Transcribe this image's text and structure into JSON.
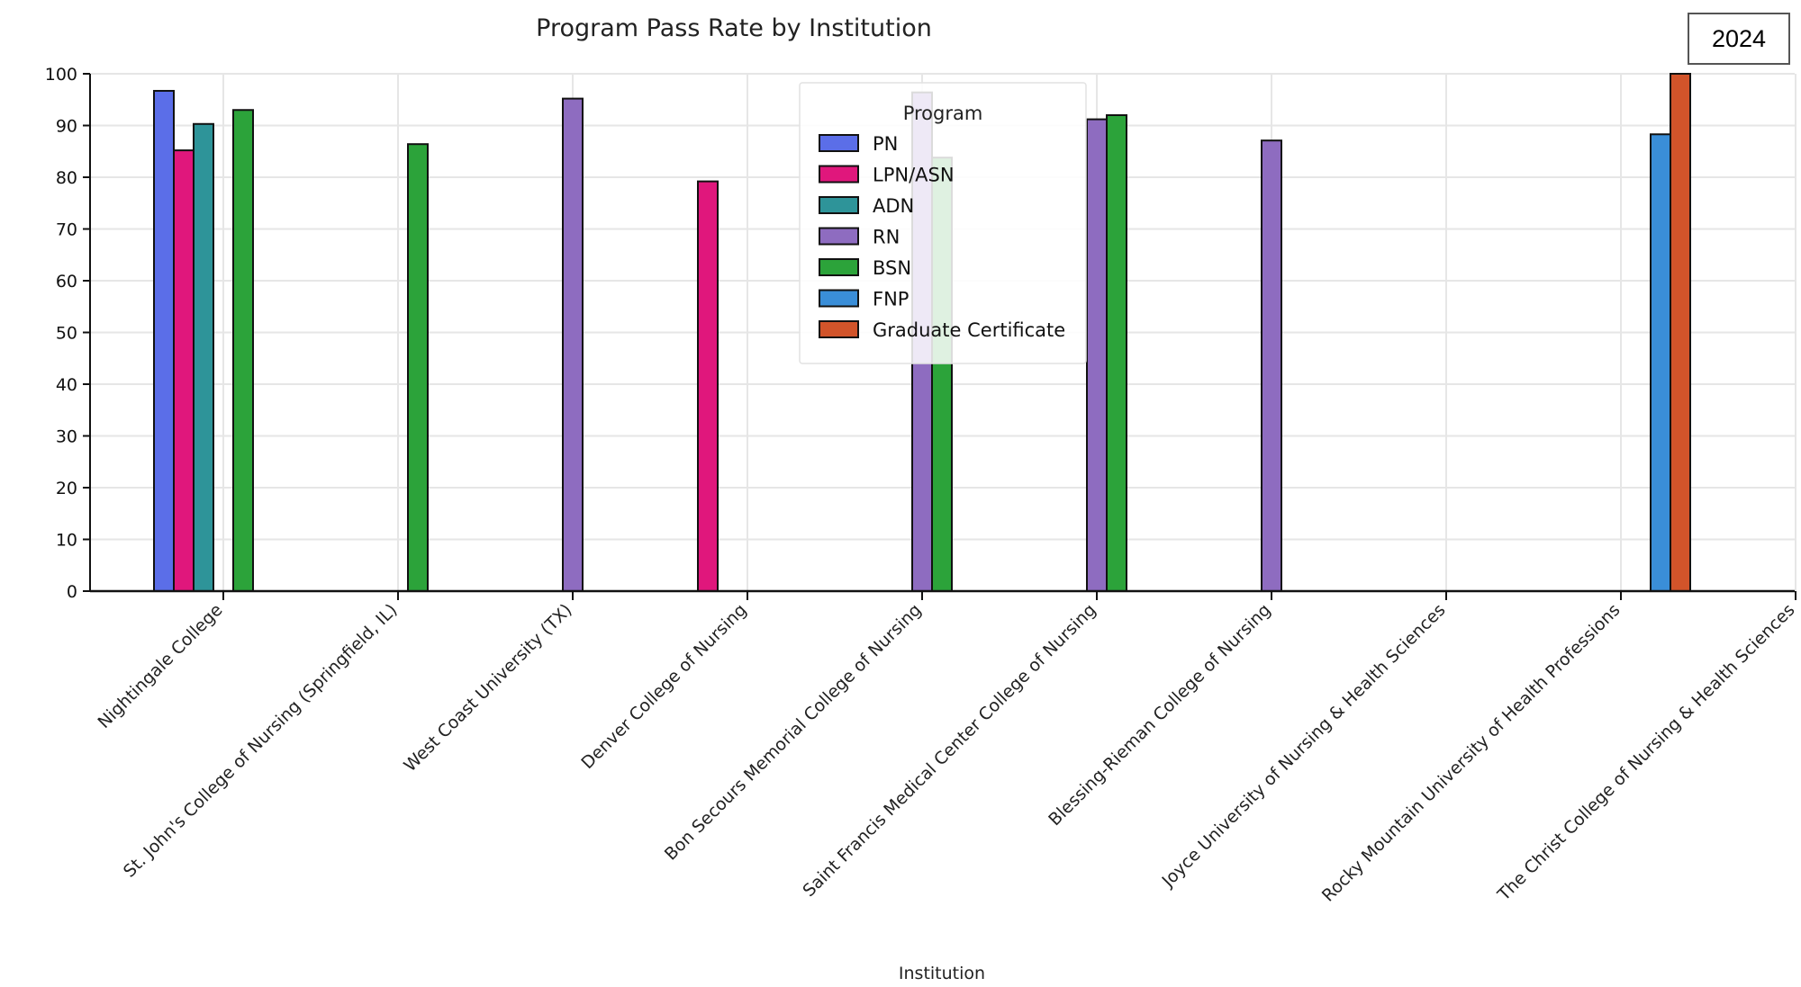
{
  "chart_data": {
    "type": "bar",
    "title": "Program Pass Rate by Institution",
    "xlabel": "Institution",
    "ylabel": "",
    "ylim": [
      0,
      100
    ],
    "yticks": [
      0,
      10,
      20,
      30,
      40,
      50,
      60,
      70,
      80,
      90,
      100
    ],
    "grid": true,
    "legend_title": "Program",
    "legend_position": "top-center",
    "categories": [
      "Nightingale College",
      "St. John's College of Nursing (Springfield, IL)",
      "West Coast University (TX)",
      "Denver College of Nursing",
      "Bon Secours Memorial College of Nursing",
      "Saint Francis Medical Center College of Nursing",
      "Blessing-Rieman College of Nursing",
      "Joyce University of Nursing & Health Sciences",
      "Rocky Mountain University of Health Professions",
      "The Christ College of Nursing & Health Sciences"
    ],
    "series": [
      {
        "name": "PN",
        "color": "#5b6ee8",
        "values": [
          96.7,
          null,
          null,
          null,
          null,
          null,
          null,
          null,
          null,
          null
        ]
      },
      {
        "name": "LPN/ASN",
        "color": "#e0177c",
        "values": [
          85.2,
          null,
          null,
          79.2,
          null,
          null,
          null,
          null,
          null,
          null
        ]
      },
      {
        "name": "ADN",
        "color": "#2e9499",
        "values": [
          90.3,
          null,
          null,
          null,
          null,
          null,
          null,
          null,
          null,
          null
        ]
      },
      {
        "name": "RN",
        "color": "#8e6cc0",
        "values": [
          null,
          null,
          95.2,
          null,
          96.4,
          91.2,
          87.1,
          null,
          null,
          null
        ]
      },
      {
        "name": "BSN",
        "color": "#2ca33a",
        "values": [
          93.0,
          86.4,
          null,
          null,
          83.8,
          92.0,
          null,
          null,
          null,
          null
        ]
      },
      {
        "name": "FNP",
        "color": "#3a8ed8",
        "values": [
          null,
          null,
          null,
          null,
          null,
          null,
          null,
          null,
          88.3,
          null
        ]
      },
      {
        "name": "Graduate Certificate",
        "color": "#d2542a",
        "values": [
          null,
          null,
          null,
          null,
          null,
          null,
          null,
          null,
          100.0,
          null
        ]
      }
    ]
  },
  "year_filter": {
    "label": "2024"
  }
}
